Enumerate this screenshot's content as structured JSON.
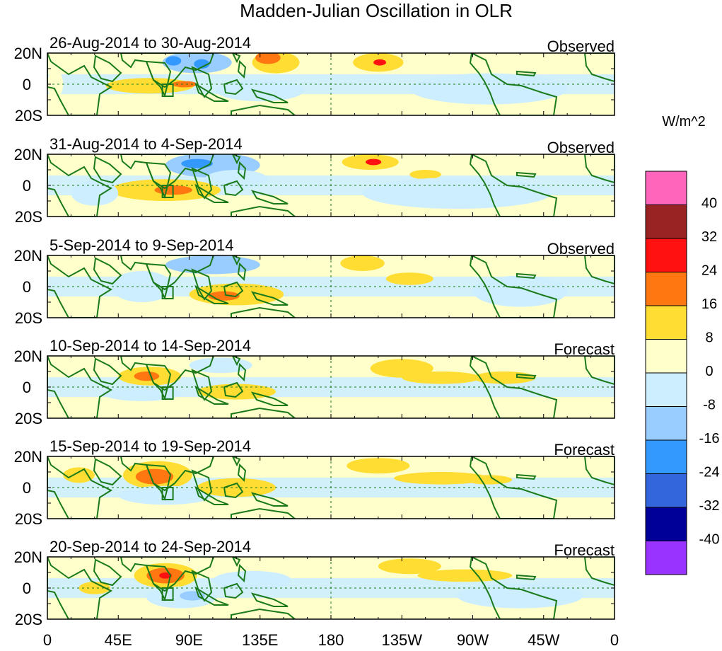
{
  "title": "Madden-Julian Oscillation in OLR",
  "colorbar": {
    "units": "W/m^2",
    "colors": [
      "#9933ff",
      "#000099",
      "#3366dd",
      "#3399ff",
      "#99ccff",
      "#cceeff",
      "#ffffcc",
      "#ffdd33",
      "#ff7711",
      "#ff1111",
      "#992222",
      "#ff66bb"
    ],
    "tick_labels": [
      "-40",
      "-32",
      "-24",
      "-16",
      "-8",
      "0",
      "8",
      "16",
      "24",
      "32",
      "40"
    ]
  },
  "y_tick_labels": [
    "20N",
    "0",
    "20S"
  ],
  "x_tick_labels": [
    "0",
    "45E",
    "90E",
    "135E",
    "180",
    "135W",
    "90W",
    "45W",
    "0"
  ],
  "panels": [
    {
      "date_range": "26-Aug-2014 to 30-Aug-2014",
      "status": "Observed",
      "anomalies": [
        {
          "lon": 5,
          "lat": 0,
          "rx": 5,
          "ry": 9,
          "value": 4
        },
        {
          "lon": 65,
          "lat": -1,
          "rx": 28,
          "ry": 5,
          "value": 8
        },
        {
          "lon": 87,
          "lat": 0,
          "rx": 8,
          "ry": 2,
          "value": 16
        },
        {
          "lon": 95,
          "lat": 14,
          "rx": 22,
          "ry": 7,
          "value": -16
        },
        {
          "lon": 80,
          "lat": 15,
          "rx": 5,
          "ry": 3,
          "value": -24
        },
        {
          "lon": 98,
          "lat": 13,
          "rx": 5,
          "ry": 3,
          "value": -24
        },
        {
          "lon": 145,
          "lat": 14,
          "rx": 15,
          "ry": 7,
          "value": 8
        },
        {
          "lon": 140,
          "lat": 17,
          "rx": 8,
          "ry": 4,
          "value": 16
        },
        {
          "lon": 135,
          "lat": -4,
          "rx": 28,
          "ry": 7,
          "value": -8
        },
        {
          "lon": 210,
          "lat": 14,
          "rx": 16,
          "ry": 6,
          "value": 8
        },
        {
          "lon": 211,
          "lat": 14,
          "rx": 4,
          "ry": 2,
          "value": 24
        },
        {
          "lon": 280,
          "lat": -3,
          "rx": 50,
          "ry": 10,
          "value": -4
        }
      ]
    },
    {
      "date_range": "31-Aug-2014 to 4-Sep-2014",
      "status": "Observed",
      "anomalies": [
        {
          "lon": 75,
          "lat": -3,
          "rx": 35,
          "ry": 7,
          "value": 8
        },
        {
          "lon": 80,
          "lat": -3,
          "rx": 12,
          "ry": 3,
          "value": 16
        },
        {
          "lon": 105,
          "lat": 13,
          "rx": 30,
          "ry": 8,
          "value": -16
        },
        {
          "lon": 95,
          "lat": 14,
          "rx": 10,
          "ry": 3,
          "value": -24
        },
        {
          "lon": 120,
          "lat": 4,
          "rx": 20,
          "ry": 6,
          "value": -8
        },
        {
          "lon": 30,
          "lat": -5,
          "rx": 15,
          "ry": 8,
          "value": -8
        },
        {
          "lon": 205,
          "lat": 15,
          "rx": 18,
          "ry": 5,
          "value": 8
        },
        {
          "lon": 207,
          "lat": 15,
          "rx": 5,
          "ry": 2,
          "value": 24
        },
        {
          "lon": 240,
          "lat": 7,
          "rx": 10,
          "ry": 3,
          "value": 8
        },
        {
          "lon": 260,
          "lat": -5,
          "rx": 60,
          "ry": 10,
          "value": -4
        }
      ]
    },
    {
      "date_range": "5-Sep-2014 to 9-Sep-2014",
      "status": "Observed",
      "anomalies": [
        {
          "lon": 105,
          "lat": 14,
          "rx": 30,
          "ry": 6,
          "value": -16
        },
        {
          "lon": 120,
          "lat": -5,
          "rx": 30,
          "ry": 7,
          "value": 8
        },
        {
          "lon": 112,
          "lat": -6,
          "rx": 10,
          "ry": 3,
          "value": 16
        },
        {
          "lon": 60,
          "lat": 0,
          "rx": 20,
          "ry": 10,
          "value": -8
        },
        {
          "lon": 200,
          "lat": 15,
          "rx": 14,
          "ry": 5,
          "value": 8
        },
        {
          "lon": 230,
          "lat": 5,
          "rx": 15,
          "ry": 4,
          "value": 8
        },
        {
          "lon": 300,
          "lat": -3,
          "rx": 30,
          "ry": 10,
          "value": -4
        }
      ]
    },
    {
      "date_range": "10-Sep-2014 to 14-Sep-2014",
      "status": "Forecast",
      "anomalies": [
        {
          "lon": 65,
          "lat": 7,
          "rx": 20,
          "ry": 6,
          "value": 8
        },
        {
          "lon": 63,
          "lat": 7,
          "rx": 8,
          "ry": 3,
          "value": 16
        },
        {
          "lon": 60,
          "lat": -4,
          "rx": 25,
          "ry": 5,
          "value": -8
        },
        {
          "lon": 120,
          "lat": -3,
          "rx": 25,
          "ry": 5,
          "value": 8
        },
        {
          "lon": 110,
          "lat": 14,
          "rx": 20,
          "ry": 5,
          "value": -8
        },
        {
          "lon": 225,
          "lat": 12,
          "rx": 20,
          "ry": 6,
          "value": 8
        },
        {
          "lon": 250,
          "lat": 6,
          "rx": 25,
          "ry": 4,
          "value": 8
        },
        {
          "lon": 290,
          "lat": 6,
          "rx": 20,
          "ry": 4,
          "value": 8
        }
      ]
    },
    {
      "date_range": "15-Sep-2014 to 19-Sep-2014",
      "status": "Forecast",
      "anomalies": [
        {
          "lon": 70,
          "lat": 8,
          "rx": 22,
          "ry": 9,
          "value": 8
        },
        {
          "lon": 68,
          "lat": 7,
          "rx": 12,
          "ry": 5,
          "value": 16
        },
        {
          "lon": 75,
          "lat": -5,
          "rx": 30,
          "ry": 6,
          "value": -8
        },
        {
          "lon": 20,
          "lat": 8,
          "rx": 10,
          "ry": 5,
          "value": 8
        },
        {
          "lon": 120,
          "lat": 0,
          "rx": 25,
          "ry": 6,
          "value": 8
        },
        {
          "lon": 210,
          "lat": 14,
          "rx": 20,
          "ry": 5,
          "value": 8
        },
        {
          "lon": 250,
          "lat": 6,
          "rx": 30,
          "ry": 4,
          "value": 8
        },
        {
          "lon": 280,
          "lat": 5,
          "rx": 15,
          "ry": 3,
          "value": 8
        }
      ]
    },
    {
      "date_range": "20-Sep-2014 to 24-Sep-2014",
      "status": "Forecast",
      "anomalies": [
        {
          "lon": 75,
          "lat": 8,
          "rx": 20,
          "ry": 8,
          "value": 8
        },
        {
          "lon": 75,
          "lat": 8,
          "rx": 12,
          "ry": 5,
          "value": 16
        },
        {
          "lon": 75,
          "lat": 8,
          "rx": 4,
          "ry": 2,
          "value": 24
        },
        {
          "lon": 85,
          "lat": -6,
          "rx": 22,
          "ry": 7,
          "value": -8
        },
        {
          "lon": 92,
          "lat": -5,
          "rx": 8,
          "ry": 3,
          "value": -16
        },
        {
          "lon": 30,
          "lat": 0,
          "rx": 10,
          "ry": 4,
          "value": 8
        },
        {
          "lon": 130,
          "lat": 5,
          "rx": 25,
          "ry": 6,
          "value": -8
        },
        {
          "lon": 230,
          "lat": 14,
          "rx": 20,
          "ry": 5,
          "value": 8
        },
        {
          "lon": 265,
          "lat": 8,
          "rx": 30,
          "ry": 4,
          "value": 8
        },
        {
          "lon": 300,
          "lat": -5,
          "rx": 40,
          "ry": 8,
          "value": -4
        }
      ]
    }
  ]
}
